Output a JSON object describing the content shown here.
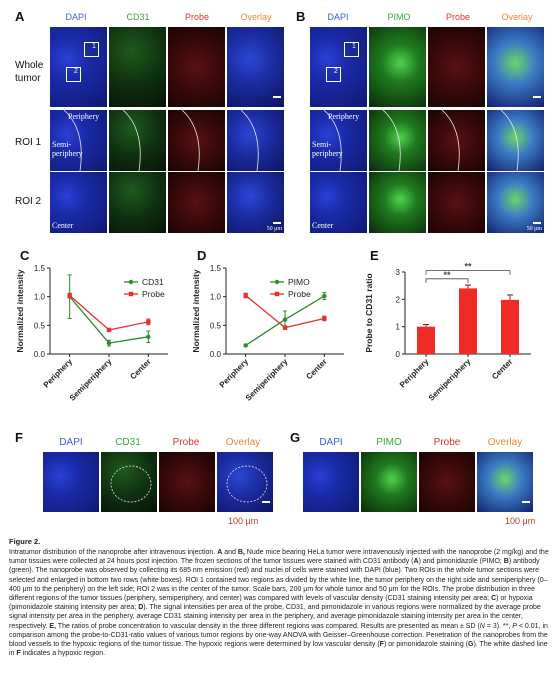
{
  "panels": {
    "A": {
      "letter": "A",
      "channels": [
        "DAPI",
        "CD31",
        "Probe",
        "Overlay"
      ],
      "rows": [
        "Whole\ntumor",
        "ROI 1",
        "ROI 2"
      ],
      "box1": "1",
      "box2": "2",
      "inlabels": [
        "Periphery",
        "Semi-\nperiphery",
        "Center"
      ]
    },
    "B": {
      "letter": "B",
      "channels": [
        "DAPI",
        "PIMO",
        "Probe",
        "Overlay"
      ],
      "box1": "1",
      "box2": "2",
      "inlabels": [
        "Periphery",
        "Semi-\nperiphery",
        "Center"
      ],
      "scale": "50 μm"
    },
    "A_scale": "50 μm",
    "F": {
      "letter": "F",
      "channels": [
        "DAPI",
        "CD31",
        "Probe",
        "Overlay"
      ],
      "scale": "100 μm"
    },
    "G": {
      "letter": "G",
      "channels": [
        "DAPI",
        "PIMO",
        "Probe",
        "Overlay"
      ],
      "scale": "100 μm"
    }
  },
  "chart_data": [
    {
      "panel": "C",
      "type": "line",
      "categories": [
        "Periphery",
        "Semiperiphery",
        "Center"
      ],
      "ylabel": "Normalized intensity",
      "ylim": [
        0,
        1.5
      ],
      "yticks": [
        "0.0",
        "0.5",
        "1.0",
        "1.5"
      ],
      "series": [
        {
          "name": "CD31",
          "color": "#2e8b2e",
          "values": [
            1.0,
            0.19,
            0.3
          ],
          "err": [
            0.38,
            0.05,
            0.1
          ]
        },
        {
          "name": "Probe",
          "color": "#e8312f",
          "values": [
            1.02,
            0.42,
            0.56
          ],
          "err": [
            0.04,
            0.02,
            0.05
          ]
        }
      ]
    },
    {
      "panel": "D",
      "type": "line",
      "categories": [
        "Periphery",
        "Semiperiphery",
        "Center"
      ],
      "ylabel": "Normalized intensity",
      "ylim": [
        0,
        1.5
      ],
      "yticks": [
        "0.0",
        "0.5",
        "1.0",
        "1.5"
      ],
      "series": [
        {
          "name": "PIMO",
          "color": "#2e8b2e",
          "values": [
            0.15,
            0.6,
            1.01
          ],
          "err": [
            0.02,
            0.15,
            0.06
          ]
        },
        {
          "name": "Probe",
          "color": "#e8312f",
          "values": [
            1.02,
            0.46,
            0.62
          ],
          "err": [
            0.04,
            0.03,
            0.04
          ]
        }
      ]
    },
    {
      "panel": "E",
      "type": "bar",
      "categories": [
        "Periphery",
        "Semiperiphery",
        "Center"
      ],
      "ylabel": "Probe to CD31 ratio",
      "ylim": [
        0,
        3
      ],
      "yticks": [
        "0",
        "1",
        "2",
        "3"
      ],
      "color": "#f02a25",
      "values": [
        1.0,
        2.4,
        1.98
      ],
      "err": [
        0.08,
        0.12,
        0.18
      ],
      "significance": [
        "**",
        "**"
      ]
    }
  ],
  "caption": {
    "title": "Figure 2.",
    "paragraphs": [
      [
        {
          "t": "Intratumor distribution of the nanoprobe after intravenous injection. "
        },
        {
          "b": "A"
        },
        {
          "t": " and "
        },
        {
          "b": "B,"
        },
        {
          "t": " Nude mice bearing HeLa tumor were intravenously injected with the nanoprobe (2 mg/kg) and the tumor tissues were collected at 24 hours post injection. The frozen sections of the tumor tissues were stained with CD31 antibody ("
        },
        {
          "b": "A"
        },
        {
          "t": ") and pimonidazole (PIMO; "
        },
        {
          "b": "B"
        },
        {
          "t": ") antibody (green). The nanoprobe was observed by collecting its 685 nm emission (red) and nuclei of cells were stained with DAPI (blue). Two ROIs in the whole tumor sections were selected and enlarged in bottom two rows (white boxes). ROI 1 contained two regions as divided by the white line, the tumor periphery on the right side and semiperiphery (0–400 μm to the periphery) on the left side; ROI 2 was in the center of the tumor. Scale bars, 200 μm for whole tumor and 50 μm for the ROIs. The probe distribution in three different regions of the tumor tissues (periphery, semiperiphery, and center) was compared with levels of vascular density (CD31 staining intensity per area; "
        },
        {
          "b": "C"
        },
        {
          "t": ") or hypoxia (pimonidazole staining intensity per area; "
        },
        {
          "b": "D"
        },
        {
          "t": "). The signal intensities per area of the probe, CD31, and pimonidazole in various regions were normalized by the average probe signal intensity per area in the periphery, average CD31 staining intensity per area in the periphery, and average pimonidazole staining intensity per area in the center, respectively. "
        },
        {
          "b": "E,"
        },
        {
          "t": " The ratios of probe concentration to vascular density in the three different regions was compared. Results are presented as mean ± SD ("
        },
        {
          "i": "N"
        },
        {
          "t": " = 3). **, "
        },
        {
          "i": "P"
        },
        {
          "t": " < 0.01, in comparison among the probe-to-CD31-ratio values of various tumor regions by one-way ANOVA with Geisser–Greenhouse correction. Penetration of the nanoprobes from the blood vessels to the hypoxic regions of the tumor tissue. The hypoxic regions were determined by low vascular density ("
        },
        {
          "b": "F"
        },
        {
          "t": ") or pimonidazole staining ("
        },
        {
          "b": "G"
        },
        {
          "t": "). The white dashed line in "
        },
        {
          "b": "F"
        },
        {
          "t": " indicates a hypoxic region."
        }
      ]
    ]
  }
}
